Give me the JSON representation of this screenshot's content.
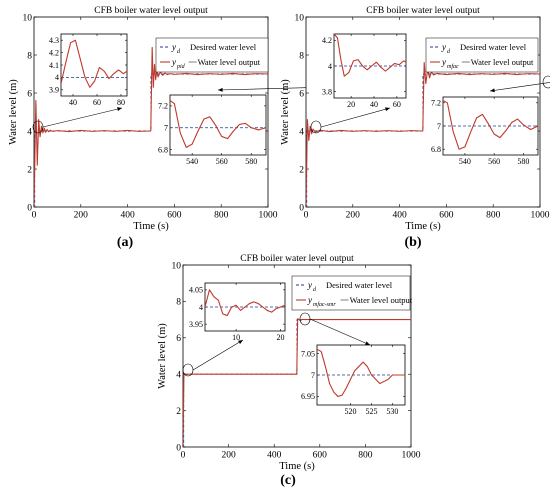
{
  "colors": {
    "desired": "#1f3a93",
    "output": "#c0392b",
    "axis": "#000000"
  },
  "chart_data": [
    {
      "panel_label": "(a)",
      "type": "line",
      "title": "CFB boiler water level output",
      "xlabel": "Time  (s)",
      "ylabel": "Water level  (m)",
      "xlim": [
        0,
        1000
      ],
      "ylim": [
        0,
        10
      ],
      "xticks": [
        0,
        200,
        400,
        600,
        800,
        1000
      ],
      "yticks": [
        0,
        2,
        4,
        6,
        8,
        10
      ],
      "legend": [
        {
          "sym": "y",
          "sub": "d",
          "text": "Desired water level"
        },
        {
          "sym": "y",
          "sub": "pid",
          "text": "Water level output"
        }
      ],
      "series": [
        {
          "role": "desired",
          "x": [
            0,
            3,
            3,
            500,
            500,
            1000
          ],
          "y": [
            0,
            0,
            4,
            4,
            7,
            7
          ]
        },
        {
          "role": "output",
          "x": [
            0,
            8,
            14,
            20,
            26,
            32,
            38,
            44,
            50,
            56,
            62,
            70,
            80,
            100,
            150,
            200,
            250,
            300,
            350,
            400,
            450,
            499,
            505,
            510,
            515,
            520,
            525,
            530,
            540,
            550,
            560,
            570,
            580,
            600,
            650,
            700,
            750,
            800,
            850,
            900,
            950,
            1000
          ],
          "y": [
            0,
            5.6,
            2.2,
            4.6,
            3.7,
            4.25,
            3.9,
            4.15,
            3.93,
            4.08,
            3.96,
            4.04,
            3.98,
            4.02,
            3.97,
            4.03,
            3.98,
            4.02,
            3.98,
            4.03,
            3.98,
            4.0,
            8.4,
            6.3,
            7.5,
            6.7,
            7.2,
            6.85,
            7.1,
            6.93,
            7.05,
            6.97,
            7.02,
            6.98,
            7.03,
            6.97,
            7.02,
            6.98,
            7.03,
            6.97,
            7.02,
            7.0
          ]
        }
      ],
      "insets": [
        {
          "xlim": [
            30,
            85
          ],
          "ylim": [
            3.85,
            4.35
          ],
          "xticks": [
            40,
            60,
            80
          ],
          "yticks": [
            3.9,
            4,
            4.1,
            4.2,
            4.3
          ],
          "x": [
            30,
            34,
            38,
            42,
            46,
            50,
            54,
            58,
            62,
            66,
            70,
            74,
            78,
            82,
            85
          ],
          "y": [
            3.95,
            4.12,
            4.28,
            4.3,
            4.15,
            4.0,
            3.92,
            3.97,
            4.08,
            4.05,
            3.99,
            4.03,
            4.06,
            4.03,
            4.05
          ]
        },
        {
          "xlim": [
            525,
            590
          ],
          "ylim": [
            6.75,
            7.3
          ],
          "xticks": [
            540,
            560,
            580
          ],
          "yticks": [
            6.8,
            7,
            7.2
          ],
          "x": [
            525,
            528,
            532,
            536,
            540,
            544,
            548,
            552,
            556,
            560,
            564,
            568,
            572,
            576,
            580,
            585,
            590
          ],
          "y": [
            7.25,
            7.22,
            6.95,
            6.82,
            6.85,
            6.97,
            7.08,
            7.1,
            7.02,
            6.92,
            6.9,
            6.97,
            7.03,
            7.04,
            7.0,
            6.98,
            7.0
          ]
        }
      ]
    },
    {
      "panel_label": "(b)",
      "type": "line",
      "title": "CFB boiler water level output",
      "xlabel": "Time  (s)",
      "ylabel": "Water level  (m)",
      "xlim": [
        0,
        1000
      ],
      "ylim": [
        0,
        10
      ],
      "xticks": [
        0,
        200,
        400,
        600,
        800,
        1000
      ],
      "yticks": [
        0,
        2,
        4,
        6,
        8,
        10
      ],
      "legend": [
        {
          "sym": "y",
          "sub": "d",
          "text": "Desired water level"
        },
        {
          "sym": "y",
          "sub": "mfac",
          "text": "Water level output"
        }
      ],
      "series": [
        {
          "role": "desired",
          "x": [
            0,
            3,
            3,
            500,
            500,
            1000
          ],
          "y": [
            0,
            0,
            4,
            4,
            7,
            7
          ]
        },
        {
          "role": "output",
          "x": [
            0,
            6,
            12,
            18,
            24,
            30,
            40,
            60,
            100,
            150,
            200,
            250,
            300,
            350,
            400,
            450,
            499,
            505,
            512,
            520,
            528,
            536,
            545,
            560,
            600,
            650,
            700,
            750,
            800,
            850,
            900,
            950,
            1000
          ],
          "y": [
            0,
            4.6,
            3.5,
            4.25,
            3.85,
            4.1,
            3.95,
            4.04,
            3.97,
            4.03,
            3.98,
            4.02,
            3.98,
            4.02,
            3.98,
            4.02,
            4.0,
            7.6,
            6.5,
            7.25,
            6.8,
            7.1,
            6.95,
            7.03,
            6.97,
            7.03,
            6.97,
            7.02,
            6.98,
            7.03,
            6.97,
            7.02,
            7.0
          ]
        }
      ],
      "insets": [
        {
          "xlim": [
            5,
            68
          ],
          "ylim": [
            3.75,
            4.25
          ],
          "xticks": [
            20,
            40,
            60
          ],
          "yticks": [
            3.8,
            4,
            4.2
          ],
          "x": [
            5,
            8,
            11,
            14,
            18,
            22,
            26,
            30,
            34,
            38,
            42,
            46,
            50,
            54,
            58,
            62,
            66,
            68
          ],
          "y": [
            4.25,
            4.22,
            4.05,
            3.92,
            3.95,
            4.04,
            4.05,
            4.0,
            3.97,
            4.0,
            4.03,
            3.99,
            3.96,
            3.99,
            4.02,
            4.01,
            4.04,
            4.03
          ]
        },
        {
          "xlim": [
            525,
            590
          ],
          "ylim": [
            6.75,
            7.25
          ],
          "xticks": [
            540,
            560,
            580
          ],
          "yticks": [
            6.8,
            7,
            7.2
          ],
          "x": [
            525,
            528,
            532,
            536,
            540,
            544,
            548,
            552,
            556,
            560,
            564,
            568,
            572,
            576,
            580,
            585,
            590
          ],
          "y": [
            7.22,
            7.2,
            6.95,
            6.8,
            6.82,
            6.95,
            7.07,
            7.1,
            7.02,
            6.93,
            6.9,
            6.96,
            7.03,
            7.06,
            7.01,
            6.97,
            7.0
          ]
        }
      ]
    },
    {
      "panel_label": "(c)",
      "type": "line",
      "title": "CFB boiler water level output",
      "xlabel": "Time  (s)",
      "ylabel": "Water level  (m)",
      "xlim": [
        0,
        1000
      ],
      "ylim": [
        0,
        10
      ],
      "xticks": [
        0,
        200,
        400,
        600,
        800,
        1000
      ],
      "yticks": [
        0,
        2,
        4,
        6,
        8,
        10
      ],
      "legend": [
        {
          "sym": "y",
          "sub": "d",
          "text": "Desired water level"
        },
        {
          "sym": "y",
          "sub": "mfac-smr",
          "text": "Water level output"
        }
      ],
      "series": [
        {
          "role": "desired",
          "x": [
            0,
            3,
            3,
            500,
            500,
            1000
          ],
          "y": [
            0,
            0,
            4,
            4,
            7,
            7
          ]
        },
        {
          "role": "output",
          "x": [
            0,
            4,
            8,
            12,
            20,
            40,
            100,
            200,
            300,
            400,
            499,
            503,
            508,
            515,
            525,
            540,
            600,
            700,
            800,
            900,
            1000
          ],
          "y": [
            0,
            4.03,
            4.02,
            3.98,
            4.0,
            4.0,
            4.0,
            4.0,
            4.0,
            4.0,
            4.0,
            7.05,
            7.0,
            6.96,
            7.01,
            7.0,
            7.0,
            7.0,
            7.0,
            7.0,
            7.0
          ]
        }
      ],
      "insets": [
        {
          "xlim": [
            3,
            21
          ],
          "ylim": [
            3.93,
            4.07
          ],
          "xticks": [
            10,
            20
          ],
          "yticks": [
            3.95,
            4,
            4.05
          ],
          "x": [
            3,
            4,
            5,
            6,
            7,
            8,
            9,
            10,
            11,
            12,
            13,
            14,
            15,
            16,
            17,
            18,
            19,
            20,
            21
          ],
          "y": [
            4.0,
            4.05,
            4.03,
            4.02,
            3.98,
            3.975,
            4.0,
            4.005,
            3.99,
            4.0,
            4.01,
            4.015,
            4.01,
            4.0,
            3.99,
            3.985,
            3.995,
            4.0,
            4.005
          ]
        },
        {
          "xlim": [
            512,
            533
          ],
          "ylim": [
            6.93,
            7.07
          ],
          "xticks": [
            520,
            525,
            530
          ],
          "yticks": [
            6.95,
            7,
            7.05
          ],
          "x": [
            512,
            513,
            514,
            515,
            516,
            517,
            518,
            519,
            520,
            521,
            522,
            523,
            524,
            525,
            526,
            527,
            528,
            529,
            530,
            531,
            532,
            533
          ],
          "y": [
            7.06,
            7.055,
            7.02,
            6.98,
            6.96,
            6.95,
            6.953,
            6.97,
            6.99,
            7.01,
            7.02,
            7.03,
            7.02,
            7.0,
            6.99,
            6.98,
            6.985,
            6.99,
            7.0,
            7.0,
            7.0,
            7.0
          ]
        }
      ]
    }
  ]
}
